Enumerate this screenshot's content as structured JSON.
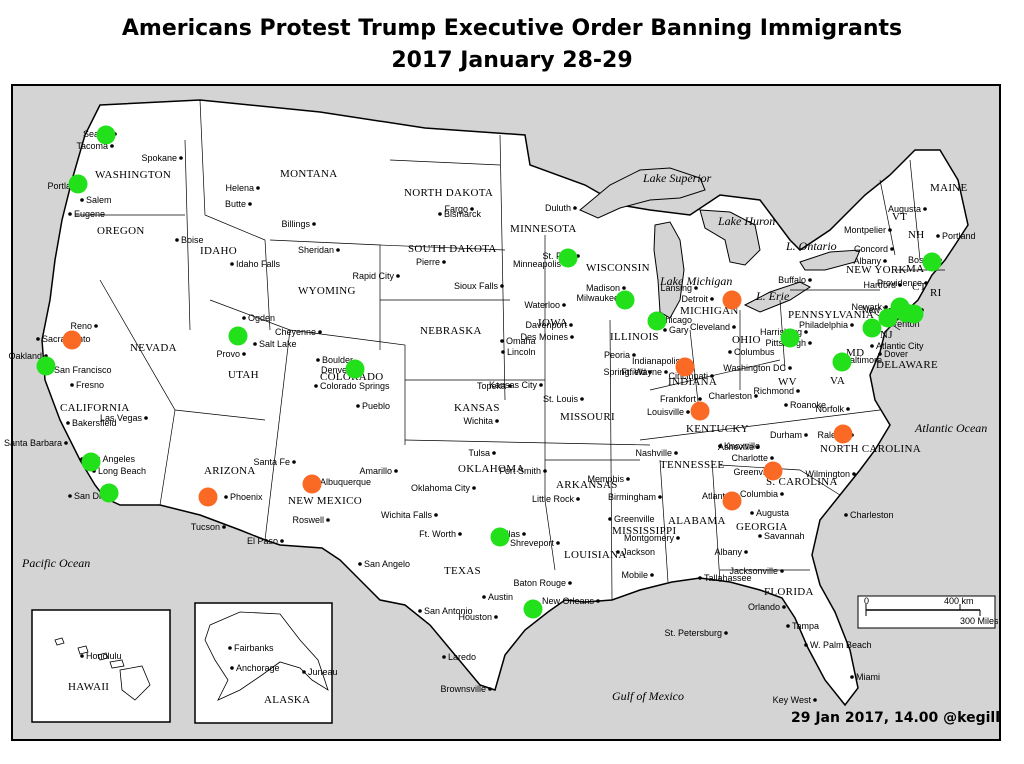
{
  "title_line1": "Americans Protest Trump Executive Order Banning Immigrants",
  "title_line2": "2017 January 28-29",
  "footer": "29 Jan 2017, 14.00 @kegill",
  "colors": {
    "green": "#22e01a",
    "orange": "#fb6a25",
    "land": "#ffffff",
    "water": "#d4d4d4",
    "border": "#000000"
  },
  "oceans": [
    "Pacific Ocean",
    "Atlantic Ocean",
    "Gulf of Mexico"
  ],
  "lakes": [
    "Lake Superior",
    "Lake Huron",
    "Lake Michigan",
    "L. Ontario",
    "L. Erie"
  ],
  "states": [
    "WASHINGTON",
    "OREGON",
    "IDAHO",
    "MONTANA",
    "WYOMING",
    "NORTH DAKOTA",
    "SOUTH DAKOTA",
    "NEBRASKA",
    "MINNESOTA",
    "IOWA",
    "WISCONSIN",
    "ILLINOIS",
    "MICHIGAN",
    "INDIANA",
    "OHIO",
    "PENNSYLVANIA",
    "NEW YORK",
    "MAINE",
    "VT",
    "NH",
    "MA",
    "CT",
    "RI",
    "NJ",
    "DELAWARE",
    "MD",
    "VA",
    "WV",
    "KENTUCKY",
    "TENNESSEE",
    "NORTH CAROLINA",
    "S. CAROLINA",
    "GEORGIA",
    "ALABAMA",
    "MISSISSIPPI",
    "LOUISIANA",
    "ARKANSAS",
    "MISSOURI",
    "KANSAS",
    "OKLAHOMA",
    "TEXAS",
    "NEW MEXICO",
    "COLORADO",
    "UTAH",
    "ARIZONA",
    "NEVADA",
    "CALIFORNIA",
    "FLORIDA",
    "HAWAII",
    "ALASKA"
  ],
  "cities": [
    "Seattle",
    "Tacoma",
    "Spokane",
    "Portland",
    "Salem",
    "Eugene",
    "Helena",
    "Butte",
    "Billings",
    "Boise",
    "Idaho Falls",
    "Sheridan",
    "Bismarck",
    "Fargo",
    "Duluth",
    "Pierre",
    "Rapid City",
    "Sioux Falls",
    "Minneapolis",
    "St. Paul",
    "Madison",
    "Milwaukee",
    "Chicago",
    "Gary",
    "Lansing",
    "Detroit",
    "Cleveland",
    "Columbus",
    "Cincinnati",
    "Indianapolis",
    "Ft. Wayne",
    "Peoria",
    "Springfield",
    "Des Moines",
    "Davenport",
    "Waterloo",
    "Omaha",
    "Lincoln",
    "Topeka",
    "Kansas City",
    "Wichita",
    "St. Louis",
    "Tulsa",
    "Oklahoma City",
    "Fort Smith",
    "Little Rock",
    "Memphis",
    "Nashville",
    "Knoxville",
    "Louisville",
    "Frankfort",
    "Charleston",
    "Pittsburgh",
    "Harrisburg",
    "Philadelphia",
    "Trenton",
    "Newark",
    "New York City",
    "Hartford",
    "Providence",
    "Boston",
    "Concord",
    "Montpelier",
    "Albany",
    "Buffalo",
    "Augusta",
    "Portland",
    "Atlantic City",
    "Dover",
    "Washington DC",
    "Baltimore",
    "Richmond",
    "Roanoke",
    "Norfolk",
    "Durham",
    "Raleigh",
    "Asheville",
    "Charlotte",
    "Greenville",
    "Columbia",
    "Charleston",
    "Wilmington",
    "Atlanta",
    "Augusta",
    "Savannah",
    "Birmingham",
    "Montgomery",
    "Albany",
    "Jackson",
    "Greenville",
    "Shreveport",
    "Baton Rouge",
    "New Orleans",
    "Mobile",
    "Tallahassee",
    "Jacksonville",
    "Orlando",
    "Tampa",
    "St. Petersburg",
    "W. Palm Beach",
    "Miami",
    "Key West",
    "Houston",
    "Austin",
    "San Antonio",
    "Laredo",
    "Brownsville",
    "Dallas",
    "Ft. Worth",
    "Wichita Falls",
    "Amarillo",
    "El Paso",
    "San Angelo",
    "Albuquerque",
    "Santa Fe",
    "Roswell",
    "Denver",
    "Boulder",
    "Colorado Springs",
    "Pueblo",
    "Cheyenne",
    "Salt Lake",
    "Ogden",
    "Provo",
    "Reno",
    "Las Vegas",
    "Phoenix",
    "Tucson",
    "Sacramento",
    "Oakland",
    "San Francisco",
    "Fresno",
    "Bakersfield",
    "Santa Barbara",
    "Los Angeles",
    "Long Beach",
    "San Diego",
    "Honolulu",
    "Fairbanks",
    "Anchorage",
    "Juneau"
  ],
  "scale": {
    "km": "400 km",
    "miles": "300 Miles",
    "zero": "0"
  },
  "protests_green": [
    "Seattle",
    "Portland",
    "Minneapolis",
    "Milwaukee",
    "Chicago",
    "Salt Lake",
    "Denver",
    "Oakland",
    "Los Angeles",
    "San Diego",
    "Dallas",
    "Houston",
    "Pittsburgh",
    "Washington DC",
    "Philadelphia",
    "New Jersey",
    "Newark",
    "New York City",
    "Hartford",
    "Boston"
  ],
  "protests_orange": [
    "Sacramento",
    "Phoenix",
    "Albuquerque",
    "Indianapolis",
    "Detroit",
    "Louisville",
    "Atlanta",
    "Greenville",
    "Raleigh"
  ]
}
